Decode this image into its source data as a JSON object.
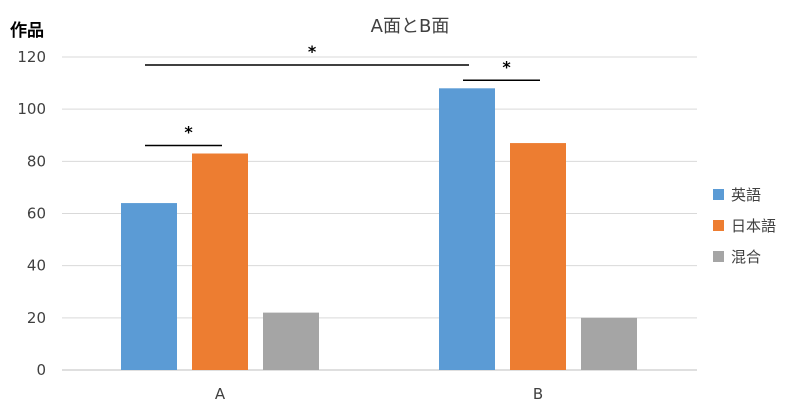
{
  "chart_data": {
    "type": "bar",
    "title": "A面とB面",
    "ylabel": "作品",
    "xlabel": "",
    "categories": [
      "A",
      "B"
    ],
    "series": [
      {
        "name": "英語",
        "values": [
          64,
          108
        ],
        "color": "#5B9BD5"
      },
      {
        "name": "日本語",
        "values": [
          83,
          87
        ],
        "color": "#ED7D31"
      },
      {
        "name": "混合",
        "values": [
          22,
          20
        ],
        "color": "#A5A5A5"
      }
    ],
    "ylim": [
      0,
      120
    ],
    "yticks": [
      0,
      20,
      40,
      60,
      80,
      100,
      120
    ],
    "grid": true,
    "legend_position": "right",
    "annotations": [
      {
        "label": "*",
        "between": "A: 英語 vs 日本語"
      },
      {
        "label": "*",
        "between": "英語: A vs B"
      },
      {
        "label": "*",
        "between": "B: 英語 vs 日本語"
      }
    ]
  },
  "colors": {
    "grid": "#D9D9D9",
    "axis": "#BFBFBF",
    "text": "#404040",
    "bracket": "#000000"
  }
}
